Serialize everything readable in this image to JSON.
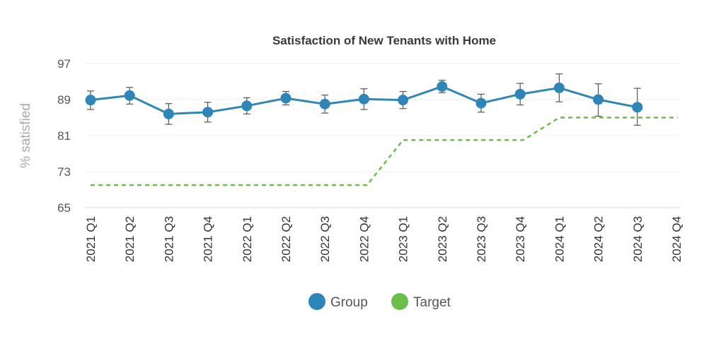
{
  "chart_data": {
    "type": "line",
    "title": "Satisfaction of New Tenants with Home",
    "xlabel": "",
    "ylabel": "% satisfied",
    "ylim": [
      65,
      97
    ],
    "yticks": [
      "97",
      "89",
      "81",
      "73",
      "65"
    ],
    "grid": true,
    "legend_position": "bottom",
    "categories": [
      "2021 Q1",
      "2021 Q2",
      "2021 Q3",
      "2021 Q4",
      "2022 Q1",
      "2022 Q2",
      "2022 Q3",
      "2022 Q4",
      "2023 Q1",
      "2023 Q2",
      "2023 Q3",
      "2023 Q4",
      "2024 Q1",
      "2024 Q2",
      "2024 Q3",
      "2024 Q4"
    ],
    "series": [
      {
        "name": "Group",
        "color": "#2e86b8",
        "style": "solid-markers-errorbars",
        "values": [
          88.9,
          89.9,
          85.8,
          86.2,
          87.6,
          89.3,
          88.0,
          89.1,
          88.9,
          91.9,
          88.2,
          90.2,
          91.6,
          89.0,
          87.3,
          null
        ],
        "error_low": [
          86.8,
          88.0,
          83.5,
          84.0,
          85.8,
          87.8,
          86.0,
          86.8,
          87.0,
          90.5,
          86.2,
          87.8,
          88.5,
          85.3,
          83.3,
          null
        ],
        "error_high": [
          90.9,
          91.7,
          88.1,
          88.4,
          89.4,
          90.8,
          90.0,
          91.4,
          90.8,
          93.3,
          90.2,
          92.6,
          94.7,
          92.5,
          91.5,
          null
        ]
      },
      {
        "name": "Target",
        "color": "#6abf4b",
        "style": "dashed-step",
        "values": [
          70,
          70,
          70,
          70,
          70,
          70,
          70,
          70,
          80,
          80,
          80,
          80,
          85,
          85,
          85,
          85
        ]
      }
    ]
  }
}
